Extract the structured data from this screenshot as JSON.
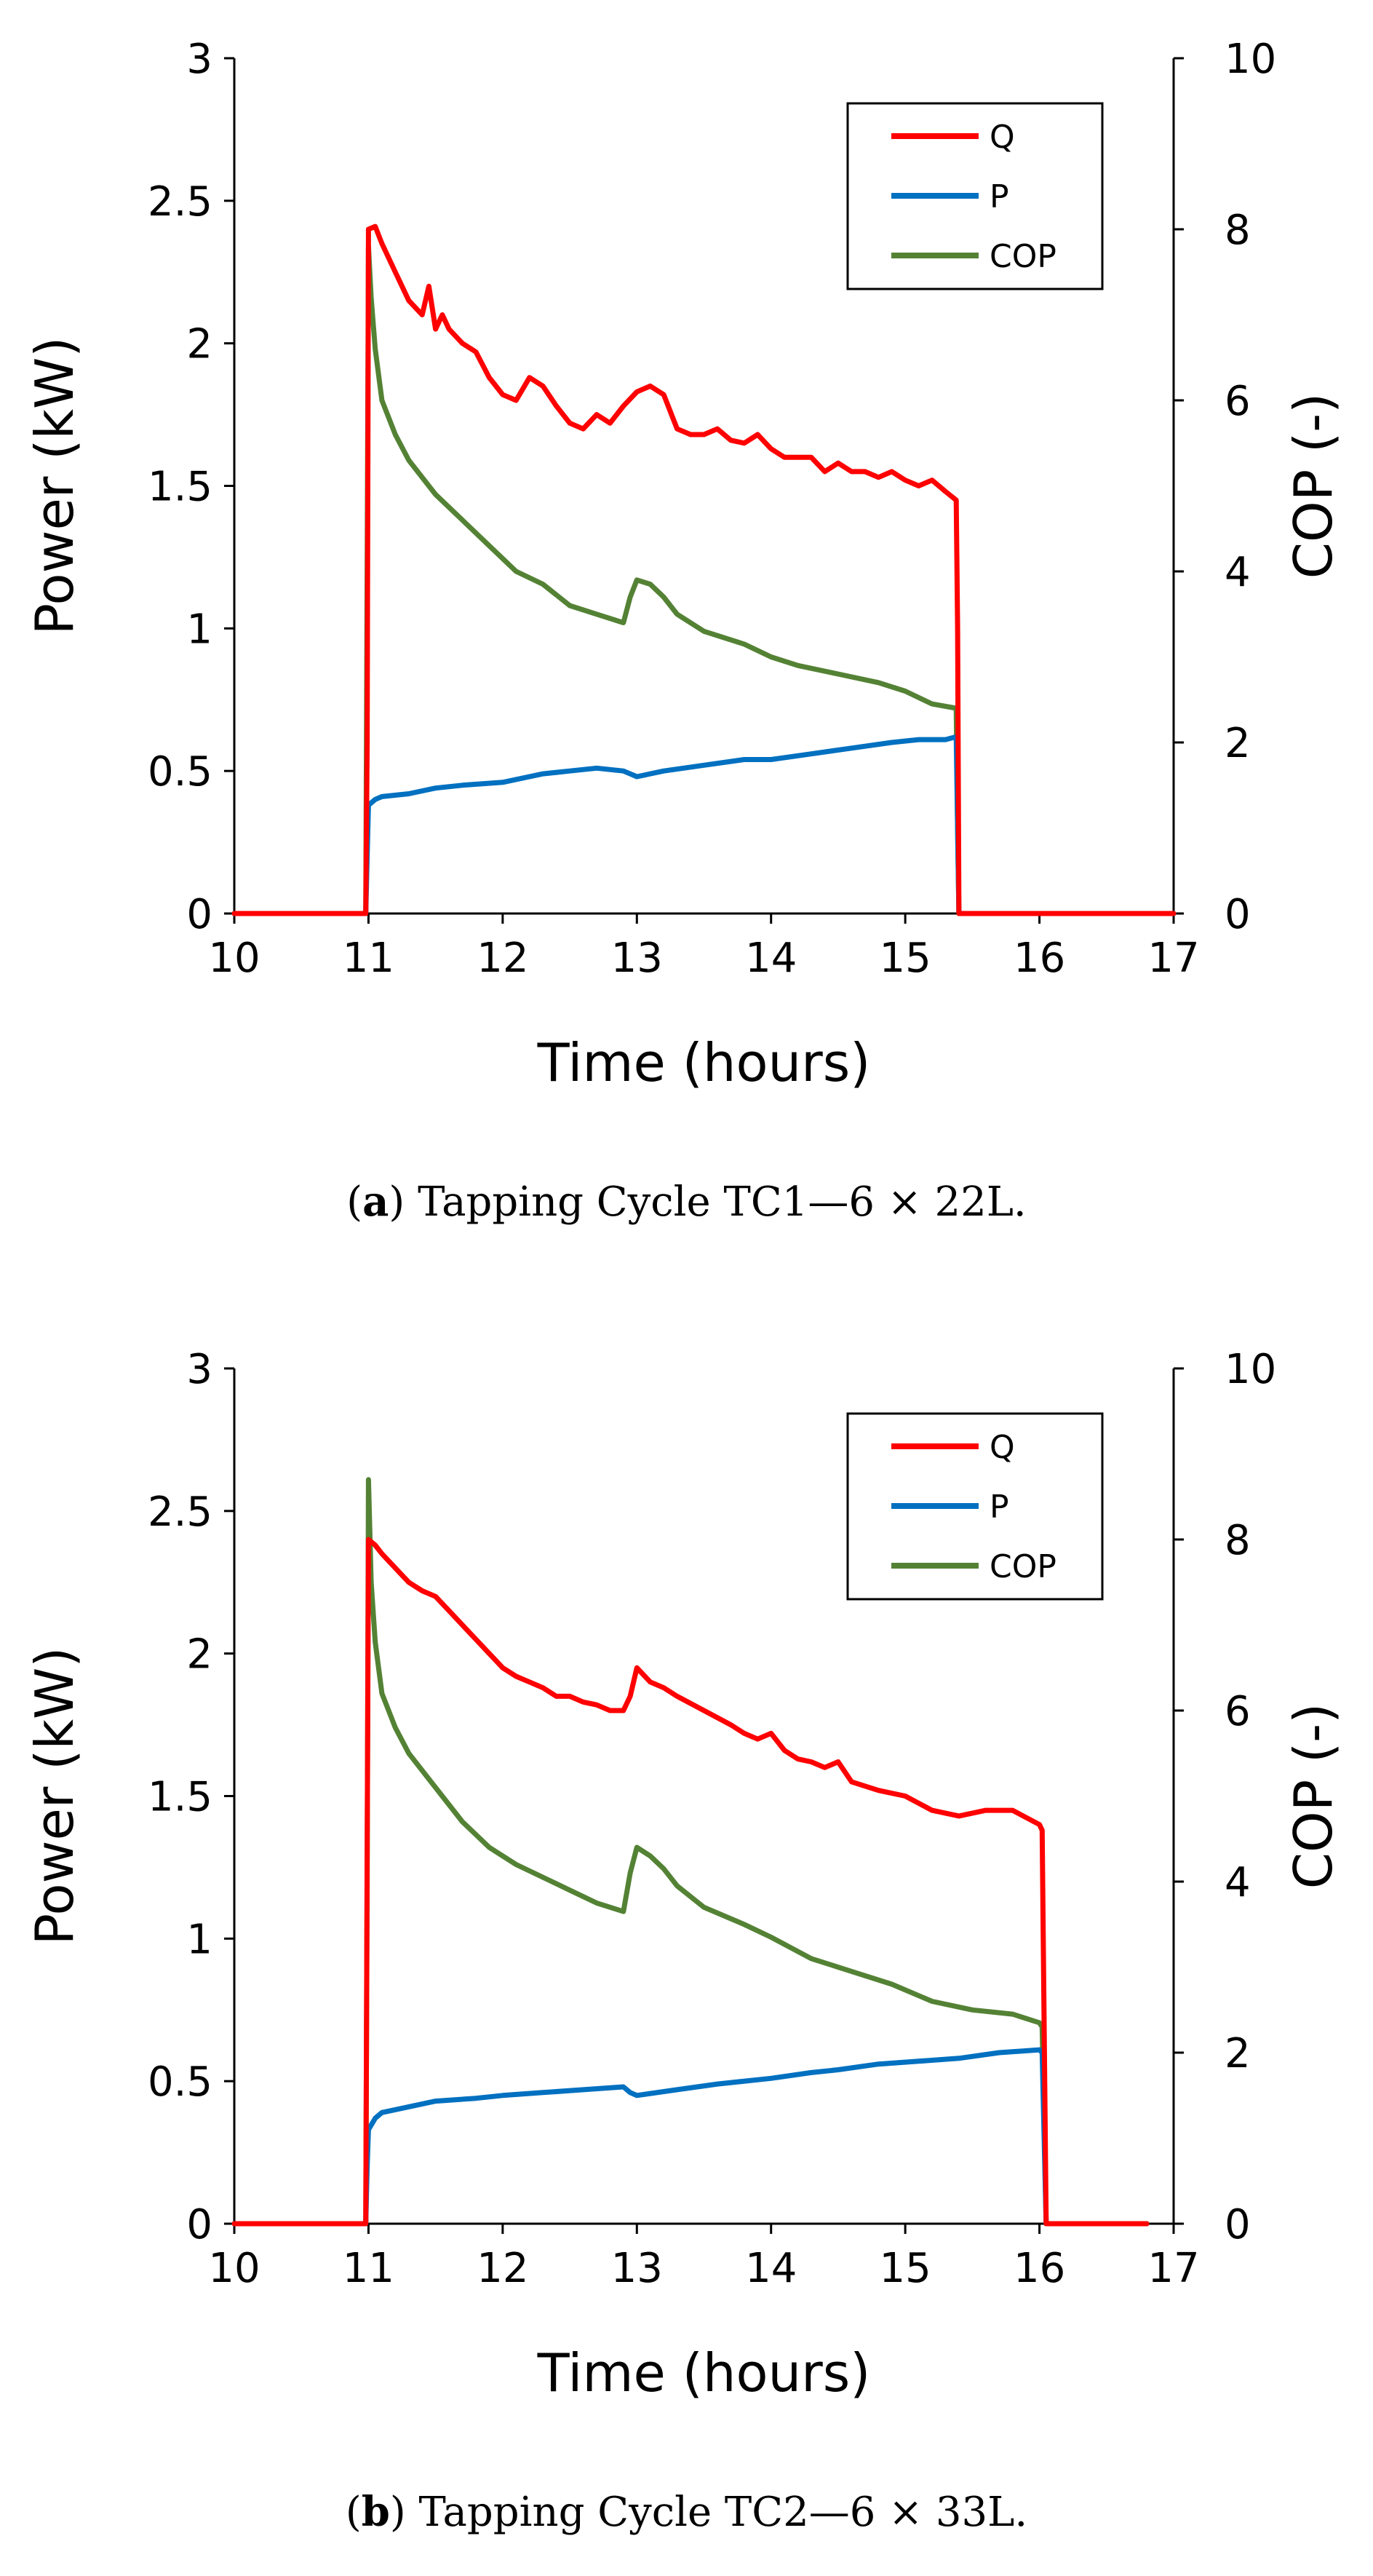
{
  "captions": [
    {
      "label": "a",
      "text": " Tapping Cycle TC1—6 × 22L."
    },
    {
      "label": "b",
      "text": " Tapping Cycle TC2—6 × 33L."
    }
  ],
  "colors": {
    "Q": "#ff0000",
    "P": "#0070c0",
    "COP": "#548235"
  },
  "chart_data": [
    {
      "type": "line",
      "xlabel": "Time (hours)",
      "ylabel": "Power (kW)",
      "y2label": "COP (-)",
      "xlim": [
        10,
        17
      ],
      "ylim": [
        0,
        3
      ],
      "y2lim": [
        0,
        10
      ],
      "x_ticks": [
        "10",
        "11",
        "12",
        "13",
        "14",
        "15",
        "16",
        "17"
      ],
      "y_ticks": [
        "0",
        "0.5",
        "1",
        "1.5",
        "2",
        "2.5",
        "3"
      ],
      "y2_ticks": [
        "0",
        "2",
        "4",
        "6",
        "8",
        "10"
      ],
      "legend_position": "top-right",
      "grid": false,
      "series": [
        {
          "name": "Q",
          "axis": "left",
          "x": [
            10,
            10.98,
            10.99,
            11.0,
            11.05,
            11.1,
            11.2,
            11.3,
            11.4,
            11.45,
            11.5,
            11.55,
            11.6,
            11.7,
            11.8,
            11.9,
            12.0,
            12.1,
            12.2,
            12.3,
            12.4,
            12.5,
            12.6,
            12.7,
            12.8,
            12.9,
            13.0,
            13.1,
            13.2,
            13.3,
            13.4,
            13.5,
            13.6,
            13.7,
            13.8,
            13.9,
            14.0,
            14.1,
            14.2,
            14.3,
            14.4,
            14.5,
            14.6,
            14.7,
            14.8,
            14.9,
            15.0,
            15.1,
            15.2,
            15.3,
            15.38,
            15.39,
            15.4,
            17
          ],
          "values": [
            0,
            0,
            0.6,
            2.4,
            2.41,
            2.35,
            2.25,
            2.15,
            2.1,
            2.2,
            2.05,
            2.1,
            2.05,
            2.0,
            1.97,
            1.88,
            1.82,
            1.8,
            1.88,
            1.85,
            1.78,
            1.72,
            1.7,
            1.75,
            1.72,
            1.78,
            1.83,
            1.85,
            1.82,
            1.7,
            1.68,
            1.68,
            1.7,
            1.66,
            1.65,
            1.68,
            1.63,
            1.6,
            1.6,
            1.6,
            1.55,
            1.58,
            1.55,
            1.55,
            1.53,
            1.55,
            1.52,
            1.5,
            1.52,
            1.48,
            1.45,
            1.0,
            0,
            0
          ]
        },
        {
          "name": "P",
          "axis": "left",
          "x": [
            10,
            10.98,
            10.99,
            11.0,
            11.05,
            11.1,
            11.3,
            11.5,
            11.7,
            12.0,
            12.3,
            12.5,
            12.7,
            12.9,
            13.0,
            13.2,
            13.5,
            13.8,
            14.0,
            14.3,
            14.6,
            14.9,
            15.1,
            15.3,
            15.38,
            15.39,
            15.4,
            17
          ],
          "values": [
            0,
            0,
            0.2,
            0.38,
            0.4,
            0.41,
            0.42,
            0.44,
            0.45,
            0.46,
            0.49,
            0.5,
            0.51,
            0.5,
            0.48,
            0.5,
            0.52,
            0.54,
            0.54,
            0.56,
            0.58,
            0.6,
            0.61,
            0.61,
            0.62,
            0.3,
            0,
            0
          ]
        },
        {
          "name": "COP",
          "axis": "right",
          "x": [
            10,
            10.98,
            10.99,
            11.0,
            11.02,
            11.05,
            11.1,
            11.2,
            11.3,
            11.5,
            11.7,
            11.9,
            12.1,
            12.3,
            12.5,
            12.7,
            12.9,
            12.95,
            13.0,
            13.1,
            13.2,
            13.3,
            13.5,
            13.8,
            14.0,
            14.2,
            14.5,
            14.8,
            15.0,
            15.2,
            15.38,
            15.39,
            15.4,
            17
          ],
          "values": [
            0,
            0,
            4.0,
            7.8,
            7.2,
            6.6,
            6.0,
            5.6,
            5.3,
            4.9,
            4.6,
            4.3,
            4.0,
            3.85,
            3.6,
            3.5,
            3.4,
            3.7,
            3.9,
            3.85,
            3.7,
            3.5,
            3.3,
            3.15,
            3.0,
            2.9,
            2.8,
            2.7,
            2.6,
            2.45,
            2.4,
            1.0,
            0,
            0
          ]
        }
      ]
    },
    {
      "type": "line",
      "xlabel": "Time (hours)",
      "ylabel": "Power (kW)",
      "y2label": "COP (-)",
      "xlim": [
        10,
        17
      ],
      "ylim": [
        0,
        3
      ],
      "y2lim": [
        0,
        10
      ],
      "x_ticks": [
        "10",
        "11",
        "12",
        "13",
        "14",
        "15",
        "16",
        "17"
      ],
      "y_ticks": [
        "0",
        "0.5",
        "1",
        "1.5",
        "2",
        "2.5",
        "3"
      ],
      "y2_ticks": [
        "0",
        "2",
        "4",
        "6",
        "8",
        "10"
      ],
      "legend_position": "top-right",
      "grid": false,
      "series": [
        {
          "name": "Q",
          "axis": "left",
          "x": [
            10,
            10.98,
            10.99,
            11.0,
            11.05,
            11.1,
            11.2,
            11.3,
            11.4,
            11.5,
            11.6,
            11.7,
            11.8,
            11.9,
            12.0,
            12.1,
            12.2,
            12.3,
            12.4,
            12.5,
            12.6,
            12.7,
            12.8,
            12.9,
            12.95,
            13.0,
            13.1,
            13.2,
            13.3,
            13.5,
            13.7,
            13.8,
            13.9,
            14.0,
            14.1,
            14.2,
            14.3,
            14.4,
            14.5,
            14.6,
            14.8,
            15.0,
            15.2,
            15.4,
            15.6,
            15.8,
            16.0,
            16.02,
            16.05,
            16.8
          ],
          "values": [
            0,
            0,
            1.3,
            2.4,
            2.38,
            2.35,
            2.3,
            2.25,
            2.22,
            2.2,
            2.15,
            2.1,
            2.05,
            2.0,
            1.95,
            1.92,
            1.9,
            1.88,
            1.85,
            1.85,
            1.83,
            1.82,
            1.8,
            1.8,
            1.85,
            1.95,
            1.9,
            1.88,
            1.85,
            1.8,
            1.75,
            1.72,
            1.7,
            1.72,
            1.66,
            1.63,
            1.62,
            1.6,
            1.62,
            1.55,
            1.52,
            1.5,
            1.45,
            1.43,
            1.45,
            1.45,
            1.4,
            1.38,
            0,
            0
          ]
        },
        {
          "name": "P",
          "axis": "left",
          "x": [
            10,
            10.98,
            10.99,
            11.0,
            11.05,
            11.1,
            11.3,
            11.5,
            11.8,
            12.0,
            12.3,
            12.6,
            12.9,
            12.95,
            13.0,
            13.3,
            13.6,
            14.0,
            14.3,
            14.5,
            14.8,
            15.1,
            15.4,
            15.7,
            16.0,
            16.02,
            16.05,
            16.8
          ],
          "values": [
            0,
            0,
            0.2,
            0.33,
            0.37,
            0.39,
            0.41,
            0.43,
            0.44,
            0.45,
            0.46,
            0.47,
            0.48,
            0.46,
            0.45,
            0.47,
            0.49,
            0.51,
            0.53,
            0.54,
            0.56,
            0.57,
            0.58,
            0.6,
            0.61,
            0.6,
            0,
            0
          ]
        },
        {
          "name": "COP",
          "axis": "right",
          "x": [
            10,
            10.98,
            10.99,
            11.0,
            11.02,
            11.05,
            11.1,
            11.2,
            11.3,
            11.5,
            11.7,
            11.9,
            12.1,
            12.3,
            12.5,
            12.7,
            12.9,
            12.95,
            13.0,
            13.1,
            13.2,
            13.3,
            13.5,
            13.8,
            14.0,
            14.3,
            14.6,
            14.9,
            15.2,
            15.5,
            15.8,
            16.0,
            16.02,
            16.05,
            16.8
          ],
          "values": [
            0,
            0,
            4.0,
            8.7,
            7.5,
            6.8,
            6.2,
            5.8,
            5.5,
            5.1,
            4.7,
            4.4,
            4.2,
            4.05,
            3.9,
            3.75,
            3.65,
            4.1,
            4.4,
            4.3,
            4.15,
            3.95,
            3.7,
            3.5,
            3.35,
            3.1,
            2.95,
            2.8,
            2.6,
            2.5,
            2.45,
            2.35,
            2.3,
            0,
            0
          ]
        }
      ]
    }
  ]
}
